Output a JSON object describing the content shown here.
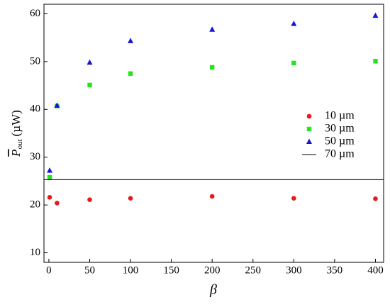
{
  "chart_data": {
    "type": "scatter",
    "xlabel": "β",
    "ylabel": {
      "symbol": "P",
      "subscript": "out",
      "unit": "(µW)"
    },
    "xlim": [
      -6,
      410
    ],
    "xticks": [
      0,
      50,
      100,
      150,
      200,
      250,
      300,
      350,
      400
    ],
    "ylim": [
      8,
      62
    ],
    "yticks": [
      10,
      20,
      30,
      40,
      50,
      60
    ],
    "legend": "right",
    "series": [
      {
        "name": "10 µm",
        "color": "#e8191c",
        "marker": "circle",
        "x": [
          1,
          10,
          50,
          100,
          200,
          300,
          400
        ],
        "values": [
          21.6,
          20.4,
          21.1,
          21.4,
          21.8,
          21.4,
          21.3
        ]
      },
      {
        "name": "30 µm",
        "color": "#22e51e",
        "marker": "square",
        "x": [
          1,
          10,
          50,
          100,
          200,
          300,
          400
        ],
        "values": [
          25.8,
          40.7,
          45.1,
          47.5,
          48.8,
          49.7,
          50.1
        ]
      },
      {
        "name": "50 µm",
        "color": "#1414d6",
        "marker": "triangle",
        "x": [
          1,
          10,
          50,
          100,
          200,
          300,
          400
        ],
        "values": [
          27.2,
          40.8,
          49.8,
          54.3,
          56.7,
          57.9,
          59.6
        ]
      },
      {
        "name": "70 µm",
        "color": "#000000",
        "marker": "hline",
        "value": 25.3
      }
    ]
  }
}
